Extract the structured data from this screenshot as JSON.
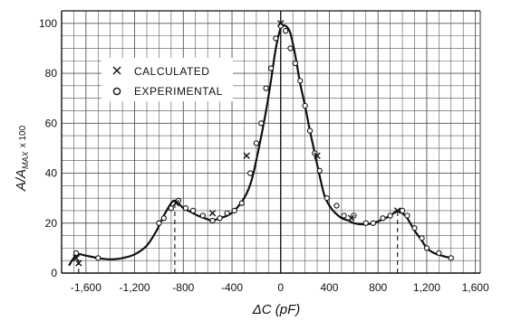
{
  "chart_data": {
    "type": "line",
    "xlabel": "ΔC (pF)",
    "ylabel": "A/A",
    "ylabel_sub": "MAX",
    "ylabel_suffix": "x 100",
    "xlim": [
      -1800,
      1640
    ],
    "ylim": [
      0,
      105
    ],
    "x_ticks": [
      -1600,
      -1200,
      -800,
      -400,
      0,
      400,
      800,
      1200,
      1600
    ],
    "x_tick_labels": [
      "-1,600",
      "-1,200",
      "-800",
      "-400",
      "0",
      "400",
      "800",
      "1,200",
      "1,600"
    ],
    "y_ticks": [
      0,
      20,
      40,
      60,
      80,
      100
    ],
    "y_tick_labels": [
      "0",
      "20",
      "40",
      "60",
      "80",
      "100"
    ],
    "grid": true,
    "legend_position": "top-left",
    "legend": [
      {
        "marker": "x",
        "label": "CALCULATED"
      },
      {
        "marker": "o",
        "label": "EXPERIMENTAL"
      }
    ],
    "series": [
      {
        "kind": "smooth-curve",
        "points": [
          [
            -1740,
            3
          ],
          [
            -1700,
            6
          ],
          [
            -1660,
            7.5
          ],
          [
            -1600,
            7
          ],
          [
            -1500,
            6
          ],
          [
            -1400,
            5.5
          ],
          [
            -1300,
            6
          ],
          [
            -1200,
            7.5
          ],
          [
            -1100,
            11
          ],
          [
            -1020,
            17
          ],
          [
            -960,
            23
          ],
          [
            -900,
            28
          ],
          [
            -870,
            29
          ],
          [
            -840,
            28
          ],
          [
            -800,
            26
          ],
          [
            -740,
            24.5
          ],
          [
            -680,
            23
          ],
          [
            -600,
            21.5
          ],
          [
            -560,
            21
          ],
          [
            -500,
            22
          ],
          [
            -440,
            23
          ],
          [
            -380,
            25
          ],
          [
            -300,
            30
          ],
          [
            -240,
            37
          ],
          [
            -180,
            50
          ],
          [
            -120,
            65
          ],
          [
            -80,
            77
          ],
          [
            -40,
            90
          ],
          [
            0,
            98
          ],
          [
            40,
            99
          ],
          [
            80,
            96
          ],
          [
            120,
            87
          ],
          [
            160,
            76
          ],
          [
            200,
            67
          ],
          [
            240,
            57
          ],
          [
            280,
            48
          ],
          [
            320,
            39
          ],
          [
            360,
            31
          ],
          [
            400,
            27
          ],
          [
            440,
            24.5
          ],
          [
            500,
            22
          ],
          [
            560,
            21
          ],
          [
            600,
            20
          ],
          [
            680,
            19.5
          ],
          [
            760,
            20
          ],
          [
            840,
            21.5
          ],
          [
            900,
            23
          ],
          [
            960,
            25
          ],
          [
            1000,
            24
          ],
          [
            1040,
            22
          ],
          [
            1100,
            17
          ],
          [
            1160,
            13
          ],
          [
            1200,
            10
          ],
          [
            1260,
            8
          ],
          [
            1320,
            7
          ],
          [
            1400,
            6
          ]
        ]
      },
      {
        "name": "CALCULATED",
        "marker": "x",
        "points": [
          [
            -1680,
            6
          ],
          [
            -1660,
            4
          ],
          [
            -860,
            28
          ],
          [
            -560,
            24
          ],
          [
            -280,
            47
          ],
          [
            0,
            100
          ],
          [
            300,
            47
          ],
          [
            580,
            22
          ],
          [
            960,
            25
          ]
        ]
      },
      {
        "name": "EXPERIMENTAL",
        "marker": "o",
        "points": [
          [
            -1680,
            8
          ],
          [
            -1500,
            6
          ],
          [
            -1000,
            20
          ],
          [
            -960,
            22
          ],
          [
            -900,
            26
          ],
          [
            -840,
            29
          ],
          [
            -780,
            26
          ],
          [
            -720,
            25
          ],
          [
            -640,
            23
          ],
          [
            -560,
            21
          ],
          [
            -500,
            22
          ],
          [
            -440,
            24
          ],
          [
            -380,
            25
          ],
          [
            -320,
            28
          ],
          [
            -250,
            40
          ],
          [
            -200,
            52
          ],
          [
            -160,
            60
          ],
          [
            -120,
            74
          ],
          [
            -80,
            82
          ],
          [
            -40,
            94
          ],
          [
            0,
            99
          ],
          [
            40,
            97
          ],
          [
            80,
            90
          ],
          [
            120,
            84
          ],
          [
            160,
            77
          ],
          [
            200,
            67
          ],
          [
            240,
            57
          ],
          [
            280,
            48
          ],
          [
            320,
            41
          ],
          [
            380,
            30
          ],
          [
            460,
            27
          ],
          [
            520,
            23
          ],
          [
            600,
            23
          ],
          [
            700,
            20
          ],
          [
            760,
            20
          ],
          [
            840,
            22
          ],
          [
            900,
            23
          ],
          [
            1000,
            25
          ],
          [
            1040,
            23
          ],
          [
            1100,
            18
          ],
          [
            1160,
            14
          ],
          [
            1200,
            10
          ],
          [
            1300,
            8
          ],
          [
            1400,
            6
          ]
        ]
      }
    ],
    "reference_lines": [
      {
        "x": -1660,
        "from": 0,
        "to": 7.5
      },
      {
        "x": -870,
        "from": 0,
        "to": 29
      },
      {
        "x": 960,
        "from": 0,
        "to": 25
      }
    ]
  }
}
